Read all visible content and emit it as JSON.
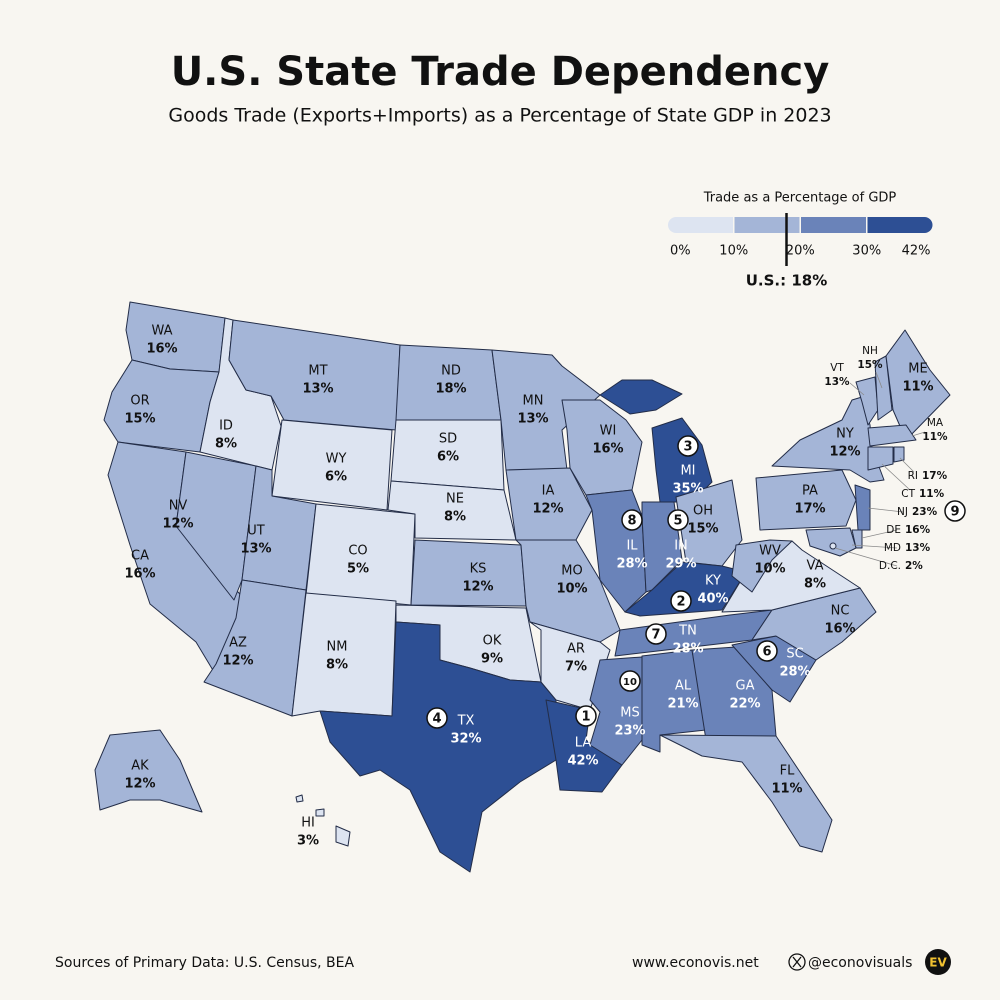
{
  "title": "U.S. State Trade Dependency",
  "subtitle": "Goods Trade (Exports+Imports) as a Percentage of State GDP in 2023",
  "legend": {
    "title": "Trade as a Percentage of GDP",
    "stops": [
      {
        "value": 0,
        "label": "0%"
      },
      {
        "value": 10,
        "label": "10%"
      },
      {
        "value": 20,
        "label": "20%"
      },
      {
        "value": 30,
        "label": "30%"
      },
      {
        "value": 42,
        "label": "42%"
      }
    ],
    "colors": [
      "#dde4f1",
      "#a4b5d7",
      "#6a83b9",
      "#2d4f94"
    ],
    "us": {
      "value": 18,
      "label": "U.S.: 18%"
    }
  },
  "states": [
    {
      "abbr": "WA",
      "value": 16,
      "value_label": "16%"
    },
    {
      "abbr": "OR",
      "value": 15,
      "value_label": "15%"
    },
    {
      "abbr": "CA",
      "value": 16,
      "value_label": "16%"
    },
    {
      "abbr": "NV",
      "value": 12,
      "value_label": "12%"
    },
    {
      "abbr": "ID",
      "value": 8,
      "value_label": "8%"
    },
    {
      "abbr": "MT",
      "value": 13,
      "value_label": "13%"
    },
    {
      "abbr": "WY",
      "value": 6,
      "value_label": "6%"
    },
    {
      "abbr": "UT",
      "value": 13,
      "value_label": "13%"
    },
    {
      "abbr": "CO",
      "value": 5,
      "value_label": "5%"
    },
    {
      "abbr": "AZ",
      "value": 12,
      "value_label": "12%"
    },
    {
      "abbr": "NM",
      "value": 8,
      "value_label": "8%"
    },
    {
      "abbr": "ND",
      "value": 18,
      "value_label": "18%"
    },
    {
      "abbr": "SD",
      "value": 6,
      "value_label": "6%"
    },
    {
      "abbr": "NE",
      "value": 8,
      "value_label": "8%"
    },
    {
      "abbr": "KS",
      "value": 12,
      "value_label": "12%"
    },
    {
      "abbr": "OK",
      "value": 9,
      "value_label": "9%"
    },
    {
      "abbr": "TX",
      "value": 32,
      "value_label": "32%",
      "rank": 4
    },
    {
      "abbr": "MN",
      "value": 13,
      "value_label": "13%"
    },
    {
      "abbr": "IA",
      "value": 12,
      "value_label": "12%"
    },
    {
      "abbr": "MO",
      "value": 10,
      "value_label": "10%"
    },
    {
      "abbr": "AR",
      "value": 7,
      "value_label": "7%"
    },
    {
      "abbr": "LA",
      "value": 42,
      "value_label": "42%",
      "rank": 1
    },
    {
      "abbr": "WI",
      "value": 16,
      "value_label": "16%"
    },
    {
      "abbr": "IL",
      "value": 28,
      "value_label": "28%",
      "rank": 8
    },
    {
      "abbr": "MI",
      "value": 35,
      "value_label": "35%",
      "rank": 3
    },
    {
      "abbr": "IN",
      "value": 29,
      "value_label": "29%",
      "rank": 5
    },
    {
      "abbr": "OH",
      "value": 15,
      "value_label": "15%"
    },
    {
      "abbr": "KY",
      "value": 40,
      "value_label": "40%",
      "rank": 2
    },
    {
      "abbr": "TN",
      "value": 28,
      "value_label": "28%",
      "rank": 7
    },
    {
      "abbr": "MS",
      "value": 23,
      "value_label": "23%",
      "rank": 10
    },
    {
      "abbr": "AL",
      "value": 21,
      "value_label": "21%"
    },
    {
      "abbr": "GA",
      "value": 22,
      "value_label": "22%"
    },
    {
      "abbr": "FL",
      "value": 11,
      "value_label": "11%"
    },
    {
      "abbr": "SC",
      "value": 28,
      "value_label": "28%",
      "rank": 6
    },
    {
      "abbr": "NC",
      "value": 16,
      "value_label": "16%"
    },
    {
      "abbr": "VA",
      "value": 8,
      "value_label": "8%"
    },
    {
      "abbr": "WV",
      "value": 10,
      "value_label": "10%"
    },
    {
      "abbr": "PA",
      "value": 17,
      "value_label": "17%"
    },
    {
      "abbr": "NY",
      "value": 12,
      "value_label": "12%"
    },
    {
      "abbr": "VT",
      "value": 13,
      "value_label": "13%"
    },
    {
      "abbr": "NH",
      "value": 15,
      "value_label": "15%"
    },
    {
      "abbr": "ME",
      "value": 11,
      "value_label": "11%"
    },
    {
      "abbr": "MA",
      "value": 11,
      "value_label": "11%"
    },
    {
      "abbr": "RI",
      "value": 17,
      "value_label": "17%"
    },
    {
      "abbr": "CT",
      "value": 11,
      "value_label": "11%"
    },
    {
      "abbr": "NJ",
      "value": 23,
      "value_label": "23%",
      "rank": 9
    },
    {
      "abbr": "DE",
      "value": 16,
      "value_label": "16%"
    },
    {
      "abbr": "MD",
      "value": 13,
      "value_label": "13%"
    },
    {
      "abbr": "D.C.",
      "value": 2,
      "value_label": "2%"
    },
    {
      "abbr": "AK",
      "value": 12,
      "value_label": "12%"
    },
    {
      "abbr": "HI",
      "value": 3,
      "value_label": "3%"
    }
  ],
  "footer": {
    "source": "Sources of Primary Data: U.S. Census, BEA",
    "website": "www.econovis.net",
    "handle": "@econovisuals",
    "logo": "EV"
  }
}
